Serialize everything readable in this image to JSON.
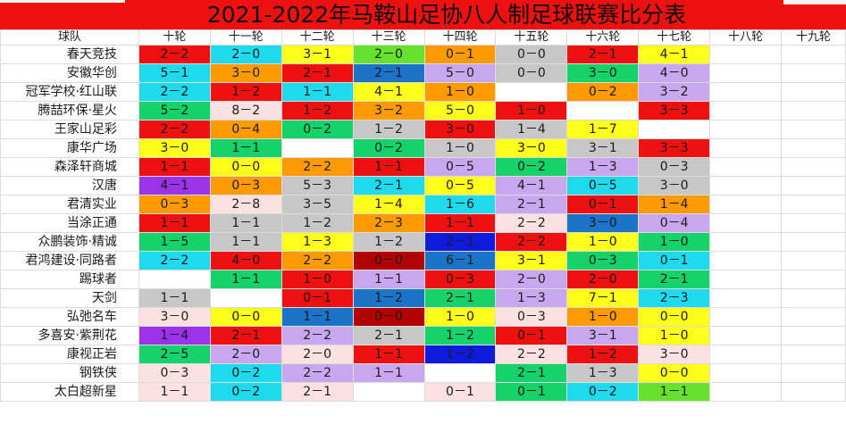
{
  "title": "2021-2022年马鞍山足协八人制足球联赛比分表",
  "header": {
    "team_col": "球队",
    "rounds": [
      "十轮",
      "十一轮",
      "十二轮",
      "十三轮",
      "十四轮",
      "十五轮",
      "十六轮",
      "十七轮",
      "十八轮",
      "十九轮"
    ]
  },
  "colors": {
    "R": "#ee1111",
    "O": "#ff9a00",
    "Y": "#ffff1a",
    "G": "#66e22e",
    "L": "#16d26a",
    "C": "#1fd9ec",
    "B": "#1b74c8",
    "N": "#0f1bdc",
    "V": "#9a33ea",
    "P": "#c8a7ef",
    "K": "#fbe1e1",
    "S": "#c7c7c7",
    "D": "#b30000",
    "E": "#b8ecf8",
    "W": "#ffffff"
  },
  "rows": [
    {
      "team": "春天竞技",
      "cells": [
        {
          "t": "2－2",
          "c": "R"
        },
        {
          "t": "2－0",
          "c": "C"
        },
        {
          "t": "3－1",
          "c": "Y"
        },
        {
          "t": "2－0",
          "c": "G"
        },
        {
          "t": "0－1",
          "c": "O"
        },
        {
          "t": "0－0",
          "c": "S"
        },
        {
          "t": "2－1",
          "c": "R"
        },
        {
          "t": "4－1",
          "c": "Y"
        },
        {
          "t": "",
          "c": "W"
        },
        {
          "t": "",
          "c": "W"
        }
      ]
    },
    {
      "team": "安徽华创",
      "cells": [
        {
          "t": "5－1",
          "c": "C"
        },
        {
          "t": "3－0",
          "c": "O"
        },
        {
          "t": "2－1",
          "c": "R"
        },
        {
          "t": "2－1",
          "c": "B"
        },
        {
          "t": "5－0",
          "c": "P"
        },
        {
          "t": "0－0",
          "c": "S"
        },
        {
          "t": "3－0",
          "c": "L"
        },
        {
          "t": "4－0",
          "c": "P"
        },
        {
          "t": "",
          "c": "W"
        },
        {
          "t": "",
          "c": "W"
        }
      ]
    },
    {
      "team": "冠军学校·红山联",
      "cells": [
        {
          "t": "2－2",
          "c": "C"
        },
        {
          "t": "1－2",
          "c": "R"
        },
        {
          "t": "1－1",
          "c": "C"
        },
        {
          "t": "4－1",
          "c": "Y"
        },
        {
          "t": "1－0",
          "c": "O"
        },
        {
          "t": "",
          "c": "W"
        },
        {
          "t": "0－2",
          "c": "O"
        },
        {
          "t": "3－2",
          "c": "P"
        },
        {
          "t": "",
          "c": "W"
        },
        {
          "t": "",
          "c": "W"
        }
      ]
    },
    {
      "team": "腾喆环保·星火",
      "cells": [
        {
          "t": "5－2",
          "c": "L"
        },
        {
          "t": "8－2",
          "c": "K"
        },
        {
          "t": "1－2",
          "c": "R"
        },
        {
          "t": "3－2",
          "c": "O"
        },
        {
          "t": "5－0",
          "c": "Y"
        },
        {
          "t": "1－0",
          "c": "R"
        },
        {
          "t": "",
          "c": "W"
        },
        {
          "t": "3－3",
          "c": "R"
        },
        {
          "t": "",
          "c": "W"
        },
        {
          "t": "",
          "c": "W"
        }
      ]
    },
    {
      "team": "王家山足彩",
      "cells": [
        {
          "t": "2－2",
          "c": "R"
        },
        {
          "t": "0－4",
          "c": "O"
        },
        {
          "t": "0－2",
          "c": "L"
        },
        {
          "t": "1－2",
          "c": "S"
        },
        {
          "t": "3－0",
          "c": "R"
        },
        {
          "t": "1－4",
          "c": "S"
        },
        {
          "t": "1－7",
          "c": "Y"
        },
        {
          "t": "",
          "c": "W"
        },
        {
          "t": "",
          "c": "W"
        },
        {
          "t": "",
          "c": "W"
        }
      ]
    },
    {
      "team": "康华广场",
      "cells": [
        {
          "t": "3－0",
          "c": "Y"
        },
        {
          "t": "1－1",
          "c": "L"
        },
        {
          "t": "",
          "c": "W"
        },
        {
          "t": "0－2",
          "c": "L"
        },
        {
          "t": "1－0",
          "c": "S"
        },
        {
          "t": "3－0",
          "c": "Y"
        },
        {
          "t": "3－1",
          "c": "S"
        },
        {
          "t": "3－3",
          "c": "R"
        },
        {
          "t": "",
          "c": "W"
        },
        {
          "t": "",
          "c": "W"
        }
      ]
    },
    {
      "team": "森泽轩商城",
      "cells": [
        {
          "t": "1－1",
          "c": "R"
        },
        {
          "t": "0－0",
          "c": "Y"
        },
        {
          "t": "2－2",
          "c": "O"
        },
        {
          "t": "1－1",
          "c": "R"
        },
        {
          "t": "0－5",
          "c": "P"
        },
        {
          "t": "0－2",
          "c": "L"
        },
        {
          "t": "1－3",
          "c": "P"
        },
        {
          "t": "0－3",
          "c": "S"
        },
        {
          "t": "",
          "c": "W"
        },
        {
          "t": "",
          "c": "W"
        }
      ]
    },
    {
      "team": "汉唐",
      "cells": [
        {
          "t": "4－1",
          "c": "V"
        },
        {
          "t": "0－3",
          "c": "O"
        },
        {
          "t": "5－3",
          "c": "S"
        },
        {
          "t": "2－1",
          "c": "C"
        },
        {
          "t": "0－5",
          "c": "Y"
        },
        {
          "t": "4－1",
          "c": "P"
        },
        {
          "t": "0－5",
          "c": "C"
        },
        {
          "t": "3－0",
          "c": "S"
        },
        {
          "t": "",
          "c": "W"
        },
        {
          "t": "",
          "c": "W"
        }
      ]
    },
    {
      "team": "君清实业",
      "cells": [
        {
          "t": "0－3",
          "c": "O"
        },
        {
          "t": "2－8",
          "c": "K"
        },
        {
          "t": "3－5",
          "c": "S"
        },
        {
          "t": "1－4",
          "c": "Y"
        },
        {
          "t": "1－6",
          "c": "C"
        },
        {
          "t": "2－1",
          "c": "P"
        },
        {
          "t": "0－1",
          "c": "R"
        },
        {
          "t": "1－4",
          "c": "O"
        },
        {
          "t": "",
          "c": "W"
        },
        {
          "t": "",
          "c": "W"
        }
      ]
    },
    {
      "team": "当涂正通",
      "cells": [
        {
          "t": "1－1",
          "c": "R"
        },
        {
          "t": "1－1",
          "c": "S"
        },
        {
          "t": "1－2",
          "c": "S"
        },
        {
          "t": "2－3",
          "c": "O"
        },
        {
          "t": "1－1",
          "c": "R"
        },
        {
          "t": "2－2",
          "c": "K"
        },
        {
          "t": "3－0",
          "c": "B"
        },
        {
          "t": "0－4",
          "c": "P"
        },
        {
          "t": "",
          "c": "W"
        },
        {
          "t": "",
          "c": "W"
        }
      ]
    },
    {
      "team": "众鹏装饰·精诚",
      "cells": [
        {
          "t": "1－5",
          "c": "L"
        },
        {
          "t": "1－1",
          "c": "S"
        },
        {
          "t": "1－3",
          "c": "Y"
        },
        {
          "t": "1－2",
          "c": "S"
        },
        {
          "t": "2－1",
          "c": "N"
        },
        {
          "t": "2－2",
          "c": "R"
        },
        {
          "t": "1－0",
          "c": "Y"
        },
        {
          "t": "1－0",
          "c": "L"
        },
        {
          "t": "",
          "c": "W"
        },
        {
          "t": "",
          "c": "W"
        }
      ]
    },
    {
      "team": "君鸿建设·同路者",
      "cells": [
        {
          "t": "2－2",
          "c": "C"
        },
        {
          "t": "4－0",
          "c": "R"
        },
        {
          "t": "2－2",
          "c": "O"
        },
        {
          "t": "0－0",
          "c": "D"
        },
        {
          "t": "6－1",
          "c": "B"
        },
        {
          "t": "3－1",
          "c": "Y"
        },
        {
          "t": "0－3",
          "c": "L"
        },
        {
          "t": "0－1",
          "c": "C"
        },
        {
          "t": "",
          "c": "W"
        },
        {
          "t": "",
          "c": "W"
        }
      ]
    },
    {
      "team": "踢球者",
      "cells": [
        {
          "t": "",
          "c": "W"
        },
        {
          "t": "1－1",
          "c": "L"
        },
        {
          "t": "1－0",
          "c": "R"
        },
        {
          "t": "1－1",
          "c": "P"
        },
        {
          "t": "0－3",
          "c": "R"
        },
        {
          "t": "2－0",
          "c": "P"
        },
        {
          "t": "2－0",
          "c": "R"
        },
        {
          "t": "2－1",
          "c": "L"
        },
        {
          "t": "",
          "c": "W"
        },
        {
          "t": "",
          "c": "W"
        }
      ]
    },
    {
      "team": "天剑",
      "cells": [
        {
          "t": "1－1",
          "c": "S"
        },
        {
          "t": "",
          "c": "W"
        },
        {
          "t": "0－1",
          "c": "R"
        },
        {
          "t": "1－2",
          "c": "B"
        },
        {
          "t": "2－1",
          "c": "L"
        },
        {
          "t": "1－3",
          "c": "P"
        },
        {
          "t": "7－1",
          "c": "Y"
        },
        {
          "t": "2－3",
          "c": "C"
        },
        {
          "t": "",
          "c": "W"
        },
        {
          "t": "",
          "c": "W"
        }
      ]
    },
    {
      "team": "弘弛名车",
      "cells": [
        {
          "t": "3－0",
          "c": "K"
        },
        {
          "t": "0－0",
          "c": "Y"
        },
        {
          "t": "1－1",
          "c": "B"
        },
        {
          "t": "0－0",
          "c": "D"
        },
        {
          "t": "1－0",
          "c": "Y"
        },
        {
          "t": "0－3",
          "c": "K"
        },
        {
          "t": "1－0",
          "c": "O"
        },
        {
          "t": "0－0",
          "c": "Y"
        },
        {
          "t": "",
          "c": "W"
        },
        {
          "t": "",
          "c": "W"
        }
      ]
    },
    {
      "team": "多喜安·紫荆花",
      "cells": [
        {
          "t": "1－4",
          "c": "V"
        },
        {
          "t": "2－1",
          "c": "R"
        },
        {
          "t": "2－2",
          "c": "P"
        },
        {
          "t": "2－1",
          "c": "S"
        },
        {
          "t": "1－2",
          "c": "L"
        },
        {
          "t": "0－1",
          "c": "R"
        },
        {
          "t": "3－1",
          "c": "P"
        },
        {
          "t": "1－0",
          "c": "Y"
        },
        {
          "t": "",
          "c": "W"
        },
        {
          "t": "",
          "c": "W"
        }
      ]
    },
    {
      "team": "康视正岩",
      "cells": [
        {
          "t": "2－5",
          "c": "L"
        },
        {
          "t": "2－0",
          "c": "P"
        },
        {
          "t": "2－0",
          "c": "K"
        },
        {
          "t": "1－1",
          "c": "R"
        },
        {
          "t": "1－2",
          "c": "N"
        },
        {
          "t": "2－2",
          "c": "K"
        },
        {
          "t": "1－2",
          "c": "R"
        },
        {
          "t": "3－0",
          "c": "K"
        },
        {
          "t": "",
          "c": "W"
        },
        {
          "t": "",
          "c": "W"
        }
      ]
    },
    {
      "team": "钢铁侠",
      "cells": [
        {
          "t": "0－3",
          "c": "K"
        },
        {
          "t": "0－2",
          "c": "C"
        },
        {
          "t": "2－2",
          "c": "P"
        },
        {
          "t": "1－1",
          "c": "P"
        },
        {
          "t": "",
          "c": "W"
        },
        {
          "t": "2－1",
          "c": "L"
        },
        {
          "t": "1－3",
          "c": "S"
        },
        {
          "t": "0－0",
          "c": "Y"
        },
        {
          "t": "",
          "c": "W"
        },
        {
          "t": "",
          "c": "W"
        }
      ]
    },
    {
      "team": "太白超新星",
      "cells": [
        {
          "t": "1－1",
          "c": "K"
        },
        {
          "t": "0－2",
          "c": "C"
        },
        {
          "t": "2－1",
          "c": "K"
        },
        {
          "t": "",
          "c": "W"
        },
        {
          "t": "0－1",
          "c": "K"
        },
        {
          "t": "0－1",
          "c": "L"
        },
        {
          "t": "0－2",
          "c": "C"
        },
        {
          "t": "1－1",
          "c": "G"
        },
        {
          "t": "",
          "c": "W"
        },
        {
          "t": "",
          "c": "W"
        }
      ]
    }
  ]
}
